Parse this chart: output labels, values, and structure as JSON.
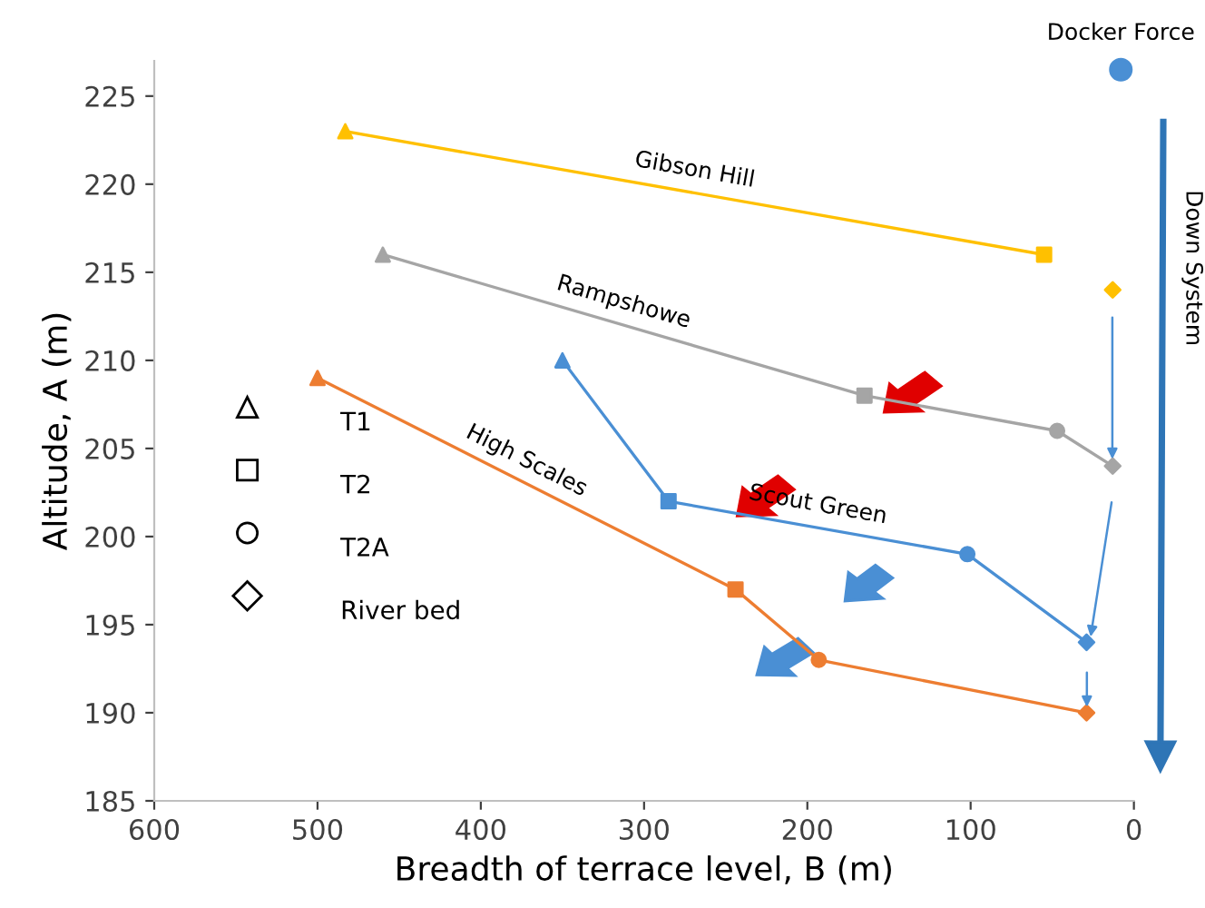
{
  "chart_data": {
    "type": "line",
    "xlabel": "Breadth of terrace level, B (m)",
    "ylabel": "Altitude, A (m)",
    "xlim": [
      600,
      0
    ],
    "xticks": [
      600,
      500,
      400,
      300,
      200,
      100,
      0
    ],
    "ylim": [
      185,
      227
    ],
    "yticks": [
      185,
      190,
      195,
      200,
      205,
      210,
      215,
      220,
      225
    ],
    "grid": false,
    "annotations": [
      "T1",
      "T2",
      "T2A",
      "River bed",
      "Down System"
    ],
    "series": [
      {
        "name": "Gibson Hill",
        "color": "#ffc000",
        "x": [
          483,
          55
        ],
        "values": [
          223,
          216
        ]
      },
      {
        "name": "Rampshowe",
        "color": "#a5a5a5",
        "x": [
          460,
          165,
          47,
          13
        ],
        "values": [
          216,
          208,
          206,
          204
        ]
      },
      {
        "name": "High Scales",
        "color": "#ed7d31",
        "x": [
          500,
          244,
          193,
          29
        ],
        "values": [
          209,
          197,
          193,
          190
        ]
      },
      {
        "name": "Scout Green",
        "color": "#4a8fd4",
        "x": [
          350,
          285,
          102,
          29
        ],
        "values": [
          210,
          202,
          199,
          194
        ]
      },
      {
        "type": "scatter",
        "marker": "triangle",
        "x": [
          483,
          460,
          500,
          350
        ],
        "values": [
          223,
          216,
          209,
          210
        ],
        "colors": [
          "#ffc000",
          "#a5a5a5",
          "#ed7d31",
          "#4a8fd4"
        ]
      },
      {
        "type": "scatter",
        "marker": "square",
        "x": [
          55,
          165,
          244,
          285
        ],
        "values": [
          216,
          208,
          197,
          202
        ],
        "colors": [
          "#ffc000",
          "#a5a5a5",
          "#ed7d31",
          "#4a8fd4"
        ]
      },
      {
        "type": "scatter",
        "marker": "circle",
        "x": [
          47,
          193,
          102
        ],
        "values": [
          206,
          193,
          199
        ],
        "colors": [
          "#a5a5a5",
          "#ed7d31",
          "#4a8fd4"
        ]
      },
      {
        "type": "scatter",
        "marker": "diamond",
        "x": [
          13,
          13,
          29,
          29
        ],
        "values": [
          214,
          204,
          190,
          194
        ],
        "colors": [
          "#ffc000",
          "#a5a5a5",
          "#ed7d31",
          "#4a8fd4"
        ]
      },
      {
        "type": "scatter",
        "name": "Docker Force",
        "marker": "circle",
        "x": [
          8
        ],
        "values": [
          226.5
        ],
        "colors": [
          "#4a8fd4"
        ]
      }
    ]
  }
}
